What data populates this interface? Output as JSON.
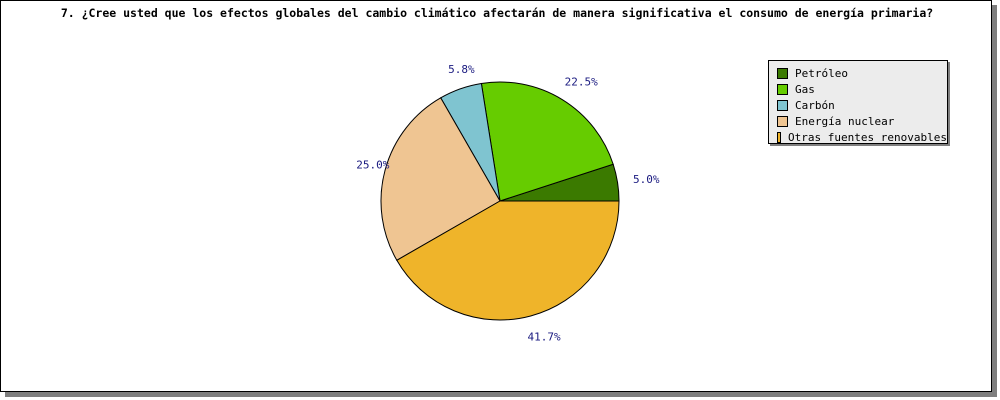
{
  "chart_data": {
    "type": "pie",
    "title": "7. ¿Cree usted que los efectos globales del cambio climático afectarán de manera significativa el consumo de energía primaria?",
    "categories": [
      "Petróleo",
      "Gas",
      "Carbón",
      "Energía nuclear",
      "Otras fuentes renovables"
    ],
    "values": [
      5.0,
      22.5,
      5.8,
      25.0,
      41.7
    ],
    "labels": [
      "5.0%",
      "22.5%",
      "5.8%",
      "25.0%",
      "41.7%"
    ],
    "colors": [
      "#3b7a00",
      "#66cc00",
      "#7fc4d0",
      "#efc592",
      "#efb42a"
    ],
    "legend_position": "top-right"
  }
}
